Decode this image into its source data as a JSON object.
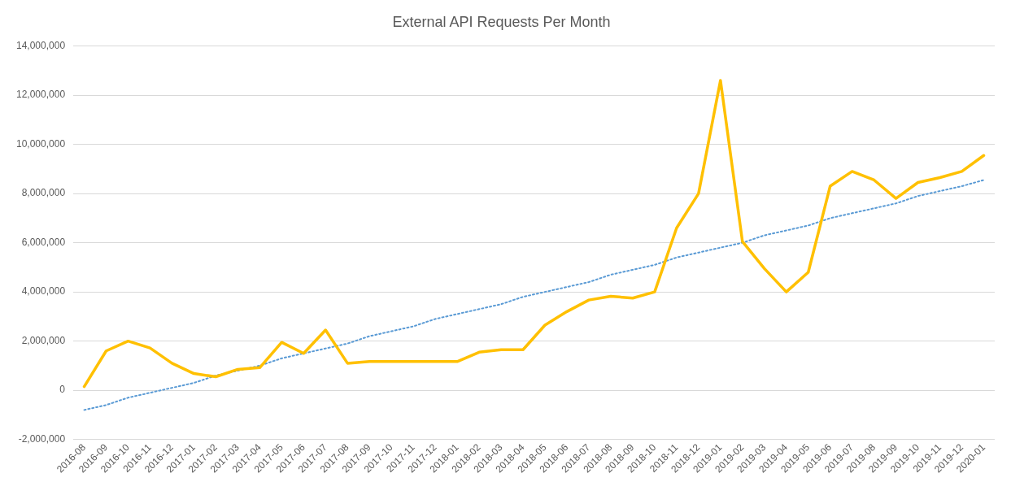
{
  "chart_data": {
    "type": "line",
    "title": "External API Requests Per Month",
    "categories": [
      "2016-08",
      "2016-09",
      "2016-10",
      "2016-11",
      "2016-12",
      "2017-01",
      "2017-02",
      "2017-03",
      "2017-04",
      "2017-05",
      "2017-06",
      "2017-07",
      "2017-08",
      "2017-09",
      "2017-10",
      "2017-11",
      "2017-12",
      "2018-01",
      "2018-02",
      "2018-03",
      "2018-04",
      "2018-05",
      "2018-06",
      "2018-07",
      "2018-08",
      "2018-09",
      "2018-10",
      "2018-11",
      "2018-12",
      "2019-01",
      "2019-02",
      "2019-03",
      "2019-04",
      "2019-05",
      "2019-06",
      "2019-07",
      "2019-08",
      "2019-09",
      "2019-10",
      "2019-11",
      "2019-12",
      "2020-01"
    ],
    "series": [
      {
        "type": "line",
        "color": "#ffc000",
        "values": [
          150000,
          1600000,
          2000000,
          1720000,
          1100000,
          680000,
          550000,
          850000,
          920000,
          1950000,
          1500000,
          2450000,
          1100000,
          1170000,
          1170000,
          1170000,
          1170000,
          1170000,
          1550000,
          1650000,
          1650000,
          2650000,
          3200000,
          3670000,
          3820000,
          3750000,
          4000000,
          6600000,
          8000000,
          12600000,
          6050000,
          4950000,
          4000000,
          4800000,
          8300000,
          8900000,
          8550000,
          7800000,
          8450000,
          8650000,
          8900000,
          9550000
        ]
      },
      {
        "type": "line",
        "color": "#5b9bd5",
        "line_style": "dotted",
        "values": [
          -800000,
          -600000,
          -300000,
          -100000,
          100000,
          300000,
          600000,
          800000,
          1000000,
          1300000,
          1500000,
          1700000,
          1900000,
          2200000,
          2400000,
          2600000,
          2900000,
          3100000,
          3300000,
          3500000,
          3800000,
          4000000,
          4200000,
          4400000,
          4700000,
          4900000,
          5100000,
          5400000,
          5600000,
          5800000,
          6000000,
          6300000,
          6500000,
          6700000,
          7000000,
          7200000,
          7400000,
          7600000,
          7900000,
          8100000,
          8300000,
          8550000
        ]
      }
    ],
    "ylim": [
      -2000000,
      14000000
    ],
    "yticks": [
      {
        "value": -2000000,
        "label": "-2,000,000"
      },
      0,
      {
        "value": 2000000,
        "label": "2,000,000"
      },
      {
        "value": 4000000,
        "label": "4,000,000"
      },
      {
        "value": 6000000,
        "label": "6,000,000"
      },
      {
        "value": 8000000,
        "label": "8,000,000"
      },
      {
        "value": 10000000,
        "label": "10,000,000"
      },
      {
        "value": 12000000,
        "label": "12,000,000"
      },
      {
        "value": 14000000,
        "label": "14,000,000"
      }
    ],
    "grid": "y",
    "legend": false,
    "marker": "none"
  }
}
